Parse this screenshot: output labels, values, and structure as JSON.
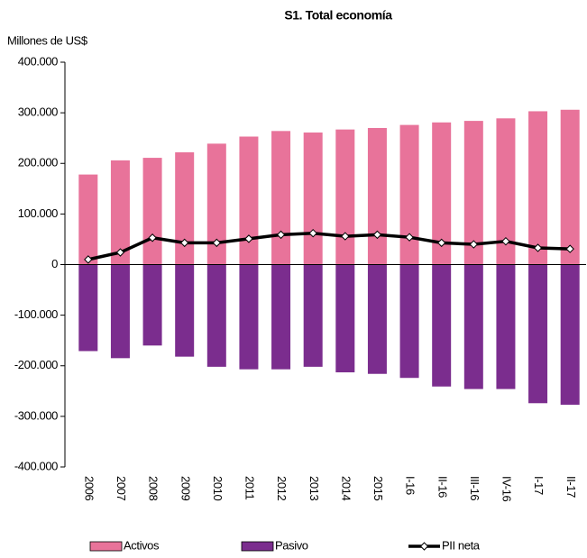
{
  "chart_data": {
    "type": "bar-line",
    "title": "S1. Total economía",
    "y_label": "Millones de US$",
    "categories": [
      "2006",
      "2007",
      "2008",
      "2009",
      "2010",
      "2011",
      "2012",
      "2013",
      "2014",
      "2015",
      "I-16",
      "II-16",
      "III-16",
      "IV-16",
      "I-17",
      "II-17"
    ],
    "series": [
      {
        "name": "Activos",
        "type": "bar",
        "color": "#e8739a",
        "values": [
          178000,
          206000,
          211000,
          222000,
          239000,
          253000,
          264000,
          261000,
          267000,
          270000,
          276000,
          281000,
          284000,
          289000,
          303000,
          306000
        ]
      },
      {
        "name": "Pasivo",
        "type": "bar",
        "color": "#7b2d8e",
        "values": [
          -171000,
          -185000,
          -160000,
          -182000,
          -202000,
          -207000,
          -207000,
          -202000,
          -213000,
          -216000,
          -224000,
          -241000,
          -246000,
          -246000,
          -274000,
          -277000
        ]
      },
      {
        "name": "PII neta",
        "type": "line",
        "color": "#000000",
        "values": [
          10000,
          24000,
          53000,
          43000,
          43000,
          51000,
          59000,
          62000,
          56000,
          59000,
          54000,
          43000,
          40000,
          46000,
          33000,
          31000
        ]
      }
    ],
    "ylim": [
      -400000,
      400000
    ],
    "yticks": [
      {
        "value": -400000,
        "label": "-400.000"
      },
      {
        "value": -300000,
        "label": "-300.000"
      },
      {
        "value": -200000,
        "label": "-200.000"
      },
      {
        "value": -100000,
        "label": "-100.000"
      },
      0,
      {
        "value": 100000,
        "label": "100.000"
      },
      {
        "value": 200000,
        "label": "200.000"
      },
      {
        "value": 300000,
        "label": "300.000"
      },
      {
        "value": 400000,
        "label": "400.000"
      }
    ],
    "grid": false
  }
}
